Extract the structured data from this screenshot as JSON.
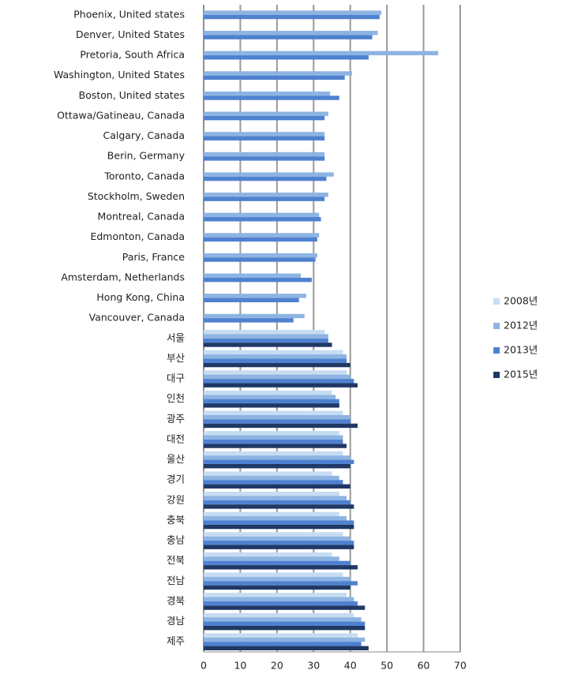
{
  "chart_data": {
    "type": "bar",
    "orientation": "horizontal",
    "categories": [
      "Phoenix, United states",
      "Denver, United States",
      "Pretoria, South Africa",
      "Washington, United States",
      "Boston, United states",
      "Ottawa/Gatineau,  Canada",
      "Calgary, Canada",
      "Berin, Germany",
      "Toronto, Canada",
      "Stockholm, Sweden",
      "Montreal, Canada",
      "Edmonton, Canada",
      "Paris, France",
      "Amsterdam, Netherlands",
      "Hong Kong, China",
      "Vancouver, Canada",
      "서울",
      "부산",
      "대구",
      "인천",
      "광주",
      "대전",
      "울산",
      "경기",
      "강원",
      "충북",
      "충남",
      "전북",
      "전남",
      "경북",
      "경남",
      "제주"
    ],
    "series": [
      {
        "name": "2008년",
        "color": "#c6dcf2",
        "values": [
          null,
          null,
          null,
          null,
          null,
          null,
          null,
          null,
          null,
          null,
          null,
          null,
          null,
          null,
          null,
          null,
          33,
          38,
          39,
          35,
          38,
          37,
          38,
          35,
          37,
          37,
          38,
          35,
          38,
          39,
          41,
          42
        ]
      },
      {
        "name": "2012년",
        "color": "#8db4e2",
        "values": [
          48.5,
          47.5,
          64,
          40.5,
          34.5,
          34,
          33,
          33,
          35.5,
          34,
          31.5,
          31.5,
          31,
          26.5,
          28,
          27.5,
          34,
          39,
          40,
          36,
          40,
          38,
          40,
          37,
          39,
          39,
          40,
          37,
          40,
          41,
          43,
          44
        ]
      },
      {
        "name": "2013년",
        "color": "#4f81d0",
        "values": [
          48,
          46,
          45,
          38.5,
          37,
          33,
          33,
          33,
          33.5,
          33,
          32,
          31,
          30.5,
          29.5,
          26,
          24.5,
          34,
          39,
          41,
          37,
          40,
          38,
          41,
          38,
          40,
          41,
          41,
          40,
          42,
          42,
          44,
          43
        ]
      },
      {
        "name": "2015년",
        "color": "#1f3864",
        "values": [
          null,
          null,
          null,
          null,
          null,
          null,
          null,
          null,
          null,
          null,
          null,
          null,
          null,
          null,
          null,
          null,
          35,
          40,
          42,
          37,
          42,
          39,
          40,
          40,
          41,
          41,
          41,
          42,
          40,
          44,
          44,
          45
        ]
      }
    ],
    "xlim": [
      0,
      70
    ],
    "xticks": [
      0,
      10,
      20,
      30,
      40,
      50,
      60,
      70
    ],
    "grid": true,
    "legend": "right"
  }
}
